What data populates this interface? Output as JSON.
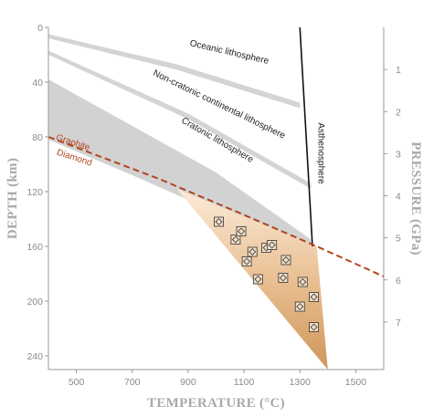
{
  "chart_data": {
    "type": "line",
    "xlabel": "TEMPERATURE (°C)",
    "ylabel": "DEPTH (km)",
    "y2label": "PRESSURE (GPa)",
    "xlim": [
      400,
      1600
    ],
    "ylim": [
      0,
      250
    ],
    "y2lim": [
      0,
      8.13
    ],
    "x_ticks": [
      500,
      700,
      900,
      1100,
      1300,
      1500
    ],
    "y_ticks": [
      0,
      40,
      80,
      120,
      160,
      200,
      240
    ],
    "y2_ticks": [
      1,
      2,
      3,
      4,
      5,
      6,
      7
    ],
    "grid": false,
    "bands": [
      {
        "name": "Oceanic lithosphere",
        "color": "#d4d4d4",
        "upper": [
          [
            400,
            5
          ],
          [
            860,
            27
          ],
          [
            1300,
            55
          ]
        ],
        "lower": [
          [
            1300,
            59
          ],
          [
            860,
            31
          ],
          [
            400,
            8
          ]
        ]
      },
      {
        "name": "Non-cratonic continental lithosphere",
        "color": "#d4d4d4",
        "upper": [
          [
            400,
            17
          ],
          [
            900,
            63
          ],
          [
            1340,
            114
          ]
        ],
        "lower": [
          [
            1340,
            118
          ],
          [
            900,
            67
          ],
          [
            400,
            20
          ]
        ]
      },
      {
        "name": "Cratonic lithosphere",
        "color": "#d2d2d2",
        "upper": [
          [
            400,
            38
          ],
          [
            700,
            72
          ],
          [
            1000,
            106
          ],
          [
            1340,
            155
          ]
        ],
        "lower": [
          [
            1340,
            158
          ],
          [
            1000,
            135
          ],
          [
            700,
            108
          ],
          [
            400,
            82
          ]
        ]
      }
    ],
    "asthenosphere": {
      "name": "Asthenosphere",
      "color": "#111111",
      "points": [
        [
          1300,
          0
        ],
        [
          1345,
          160
        ]
      ]
    },
    "graphite_diamond_boundary": {
      "upper_label": "Graphite",
      "lower_label": "Diamond",
      "color": "#b0461e",
      "points": [
        [
          400,
          80
        ],
        [
          800,
          111
        ],
        [
          1100,
          137
        ],
        [
          1360,
          160
        ],
        [
          1600,
          182
        ]
      ]
    },
    "diamond_window": {
      "color": "#d9a877",
      "points": [
        [
          860,
          118
        ],
        [
          1360,
          160
        ],
        [
          1400,
          250
        ]
      ]
    },
    "series": [
      {
        "values": [
          [
            1010,
            142
          ],
          [
            1070,
            155
          ],
          [
            1090,
            149
          ],
          [
            1110,
            171
          ],
          [
            1130,
            164
          ],
          [
            1150,
            184
          ],
          [
            1180,
            161
          ],
          [
            1200,
            159
          ],
          [
            1240,
            183
          ],
          [
            1250,
            170
          ],
          [
            1300,
            204
          ],
          [
            1310,
            186
          ],
          [
            1350,
            197
          ],
          [
            1350,
            219
          ]
        ]
      }
    ]
  }
}
